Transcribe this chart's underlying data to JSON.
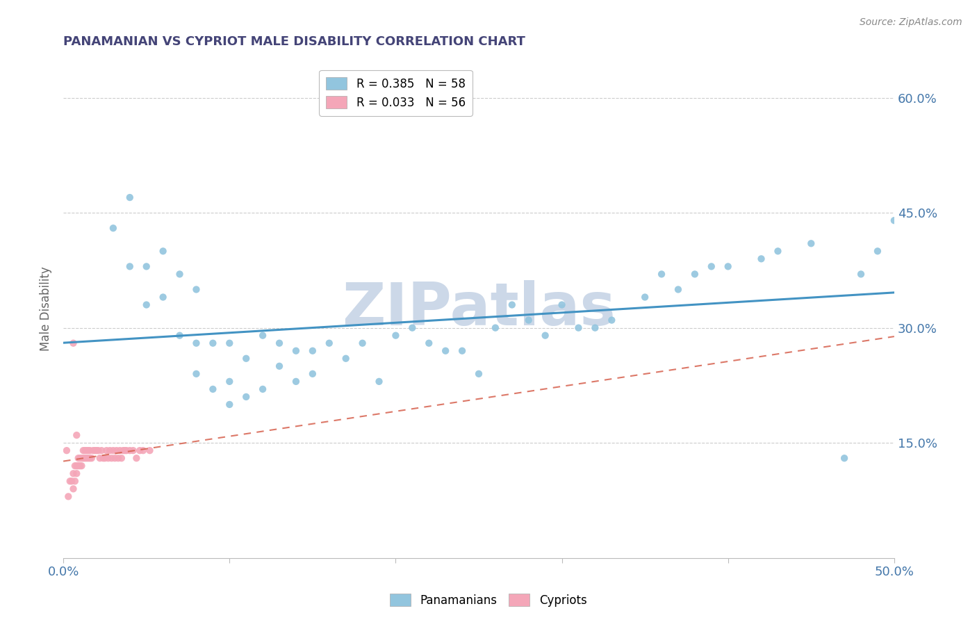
{
  "title": "PANAMANIAN VS CYPRIOT MALE DISABILITY CORRELATION CHART",
  "source": "Source: ZipAtlas.com",
  "ylabel": "Male Disability",
  "xlim": [
    0.0,
    0.5
  ],
  "ylim": [
    0.0,
    0.65
  ],
  "yticks_right": [
    0.15,
    0.3,
    0.45,
    0.6
  ],
  "ytick_labels_right": [
    "15.0%",
    "30.0%",
    "45.0%",
    "60.0%"
  ],
  "blue_R": 0.385,
  "blue_N": 58,
  "pink_R": 0.033,
  "pink_N": 56,
  "blue_color": "#92c5de",
  "pink_color": "#f4a6b8",
  "blue_line_color": "#4393c3",
  "pink_line_color": "#d6604d",
  "grid_color": "#cccccc",
  "watermark": "ZIPatlas",
  "watermark_color": "#ccd8e8",
  "legend_blue_label": "R = 0.385   N = 58",
  "legend_pink_label": "R = 0.033   N = 56",
  "blue_scatter_x": [
    0.03,
    0.04,
    0.04,
    0.05,
    0.05,
    0.06,
    0.06,
    0.07,
    0.07,
    0.08,
    0.08,
    0.08,
    0.09,
    0.09,
    0.1,
    0.1,
    0.1,
    0.11,
    0.11,
    0.12,
    0.12,
    0.13,
    0.13,
    0.14,
    0.14,
    0.15,
    0.15,
    0.16,
    0.17,
    0.18,
    0.19,
    0.2,
    0.21,
    0.22,
    0.23,
    0.24,
    0.25,
    0.26,
    0.27,
    0.28,
    0.29,
    0.3,
    0.31,
    0.32,
    0.33,
    0.35,
    0.36,
    0.37,
    0.38,
    0.39,
    0.4,
    0.42,
    0.43,
    0.45,
    0.47,
    0.48,
    0.49,
    0.5
  ],
  "blue_scatter_y": [
    0.43,
    0.47,
    0.38,
    0.38,
    0.33,
    0.4,
    0.34,
    0.37,
    0.29,
    0.35,
    0.28,
    0.24,
    0.28,
    0.22,
    0.28,
    0.23,
    0.2,
    0.26,
    0.21,
    0.29,
    0.22,
    0.28,
    0.25,
    0.27,
    0.23,
    0.27,
    0.24,
    0.28,
    0.26,
    0.28,
    0.23,
    0.29,
    0.3,
    0.28,
    0.27,
    0.27,
    0.24,
    0.3,
    0.33,
    0.31,
    0.29,
    0.33,
    0.3,
    0.3,
    0.31,
    0.34,
    0.37,
    0.35,
    0.37,
    0.38,
    0.38,
    0.39,
    0.4,
    0.41,
    0.13,
    0.37,
    0.4,
    0.44
  ],
  "pink_scatter_x": [
    0.002,
    0.003,
    0.004,
    0.005,
    0.006,
    0.006,
    0.007,
    0.007,
    0.008,
    0.008,
    0.009,
    0.009,
    0.01,
    0.01,
    0.011,
    0.011,
    0.012,
    0.012,
    0.013,
    0.013,
    0.014,
    0.014,
    0.015,
    0.015,
    0.016,
    0.016,
    0.017,
    0.018,
    0.019,
    0.02,
    0.021,
    0.022,
    0.023,
    0.024,
    0.025,
    0.026,
    0.027,
    0.028,
    0.029,
    0.03,
    0.031,
    0.032,
    0.033,
    0.034,
    0.035,
    0.036,
    0.037,
    0.038,
    0.04,
    0.042,
    0.044,
    0.046,
    0.048,
    0.052,
    0.006,
    0.008
  ],
  "pink_scatter_y": [
    0.14,
    0.08,
    0.1,
    0.1,
    0.09,
    0.11,
    0.1,
    0.12,
    0.11,
    0.12,
    0.12,
    0.13,
    0.12,
    0.13,
    0.12,
    0.13,
    0.13,
    0.14,
    0.13,
    0.14,
    0.13,
    0.14,
    0.13,
    0.14,
    0.13,
    0.14,
    0.13,
    0.14,
    0.14,
    0.14,
    0.14,
    0.13,
    0.14,
    0.13,
    0.13,
    0.14,
    0.13,
    0.14,
    0.13,
    0.14,
    0.13,
    0.14,
    0.13,
    0.14,
    0.13,
    0.14,
    0.14,
    0.14,
    0.14,
    0.14,
    0.13,
    0.14,
    0.14,
    0.14,
    0.28,
    0.16
  ],
  "title_color": "#444477",
  "tick_label_color": "#4477aa"
}
